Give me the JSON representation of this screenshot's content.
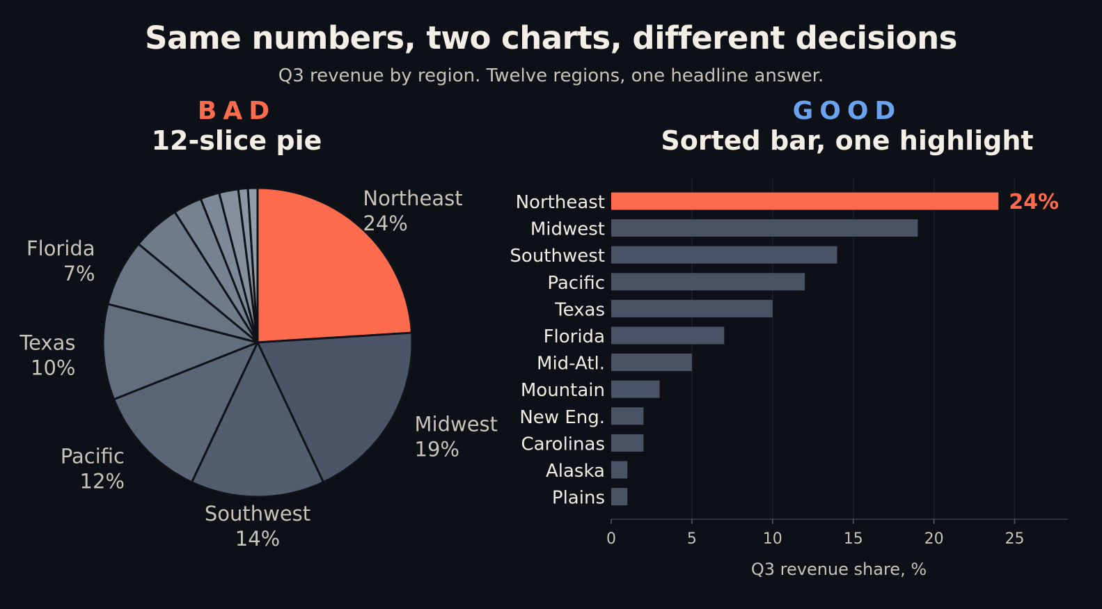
{
  "title": "Same numbers, two charts, different decisions",
  "subtitle": "Q3 revenue by region. Twelve regions, one headline answer.",
  "colors": {
    "background": "#0d1017",
    "highlight": "#ff6b4d",
    "good_tag": "#6aa3f0",
    "bar_muted": "#4a5365",
    "text_light": "#f2ede4",
    "text_muted": "#c9c3ba"
  },
  "panels": {
    "bad": {
      "tag": "BAD",
      "heading": "12-slice pie"
    },
    "good": {
      "tag": "GOOD",
      "heading": "Sorted bar, one highlight"
    }
  },
  "chart_data": [
    {
      "type": "pie",
      "title": "12-slice pie",
      "start": "12 o'clock, clockwise",
      "categories": [
        "Northeast",
        "Midwest",
        "Southwest",
        "Pacific",
        "Texas",
        "Florida",
        "Mid-Atl.",
        "Mountain",
        "New Eng.",
        "Carolinas",
        "Alaska",
        "Plains"
      ],
      "values": [
        24,
        19,
        14,
        12,
        10,
        7,
        5,
        3,
        2,
        2,
        1,
        1
      ],
      "labels": [
        {
          "name": "Northeast",
          "pct": "24%"
        },
        {
          "name": "Midwest",
          "pct": "19%"
        },
        {
          "name": "Southwest",
          "pct": "14%"
        },
        {
          "name": "Pacific",
          "pct": "12%"
        },
        {
          "name": "Texas",
          "pct": "10%"
        },
        {
          "name": "Florida",
          "pct": "7%"
        }
      ],
      "highlight": "Northeast"
    },
    {
      "type": "bar",
      "orientation": "horizontal",
      "title": "Sorted bar, one highlight",
      "categories": [
        "Northeast",
        "Midwest",
        "Southwest",
        "Pacific",
        "Texas",
        "Florida",
        "Mid-Atl.",
        "Mountain",
        "New Eng.",
        "Carolinas",
        "Alaska",
        "Plains"
      ],
      "values": [
        24,
        19,
        14,
        12,
        10,
        7,
        5,
        3,
        2,
        2,
        1,
        1
      ],
      "highlight": "Northeast",
      "highlight_label": "24%",
      "xlabel": "Q3 revenue share, %",
      "ylabel": "",
      "xlim": [
        0,
        28.3
      ],
      "xticks": [
        "0",
        "5",
        "10",
        "15",
        "20",
        "25"
      ],
      "grid": "vertical"
    }
  ]
}
